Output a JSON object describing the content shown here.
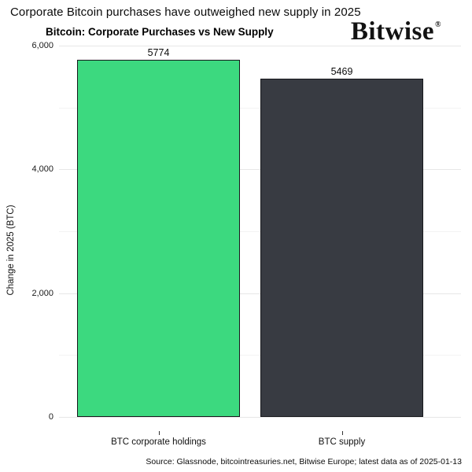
{
  "headline": "Corporate Bitcoin purchases have outweighed new supply in 2025",
  "logo": {
    "text": "Bitwise",
    "registered_mark": "®"
  },
  "source": "Source: Glassnode, bitcointreasuries.net, Bitwise Europe; latest data as of 2025-01-13",
  "chart_data": {
    "type": "bar",
    "title": "Bitcoin: Corporate Purchases vs New Supply",
    "categories": [
      "BTC corporate holdings",
      "BTC supply"
    ],
    "values": [
      5774,
      5469
    ],
    "value_labels": [
      "5774",
      "5469"
    ],
    "bar_colors": [
      "#3cd97f",
      "#383b42"
    ],
    "bar_border_color": "#17181c",
    "xlabel": "",
    "ylabel": "Change in 2025 (BTC)",
    "ylim": [
      0,
      6000
    ],
    "yticks": [
      0,
      2000,
      4000,
      6000
    ],
    "ytick_labels": [
      "0",
      "2,000",
      "4,000",
      "6,000"
    ],
    "minor_yticks": [
      1000,
      3000,
      5000
    ],
    "grid": "horizontal-major-and-minor",
    "legend": "none",
    "background": "#ffffff"
  }
}
